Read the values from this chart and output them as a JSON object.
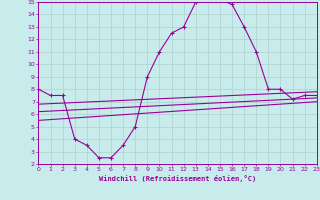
{
  "title": "",
  "xlabel": "Windchill (Refroidissement éolien,°C)",
  "background_color": "#c8ecec",
  "line_color": "#990099",
  "grid_color": "#b0d0d0",
  "xmin": 0,
  "xmax": 23,
  "ymin": 2,
  "ymax": 15,
  "x_ticks": [
    0,
    1,
    2,
    3,
    4,
    5,
    6,
    7,
    8,
    9,
    10,
    11,
    12,
    13,
    14,
    15,
    16,
    17,
    18,
    19,
    20,
    21,
    22,
    23
  ],
  "y_ticks": [
    2,
    3,
    4,
    5,
    6,
    7,
    8,
    9,
    10,
    11,
    12,
    13,
    14,
    15
  ],
  "curve1_x": [
    0,
    1,
    2,
    3,
    4,
    5,
    6,
    7,
    8,
    9,
    10,
    11,
    12,
    13,
    14,
    15,
    16,
    17,
    18,
    19,
    20,
    21,
    22,
    23
  ],
  "curve1_y": [
    8.0,
    7.5,
    7.5,
    4.0,
    3.5,
    2.5,
    2.5,
    3.5,
    5.0,
    9.0,
    11.0,
    12.5,
    13.0,
    15.0,
    15.2,
    15.2,
    14.8,
    13.0,
    11.0,
    8.0,
    8.0,
    7.2,
    7.5,
    7.5
  ],
  "curve2_x": [
    0,
    23
  ],
  "curve2_y": [
    6.8,
    7.8
  ],
  "curve3_x": [
    0,
    23
  ],
  "curve3_y": [
    6.2,
    7.3
  ],
  "curve4_x": [
    0,
    23
  ],
  "curve4_y": [
    5.5,
    7.0
  ]
}
